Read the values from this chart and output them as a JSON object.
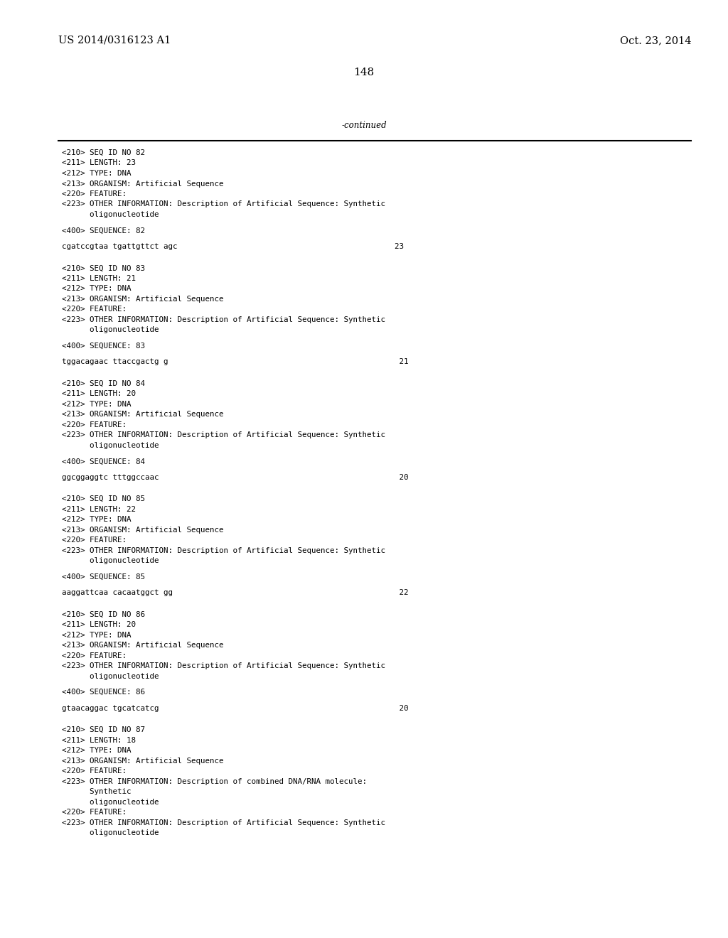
{
  "header_left": "US 2014/0316123 A1",
  "header_right": "Oct. 23, 2014",
  "page_number": "148",
  "continued_label": "-continued",
  "background_color": "#ffffff",
  "text_color": "#000000",
  "font_size_header": 10.5,
  "font_size_body": 8.5,
  "font_size_page": 11,
  "content_lines": [
    "<210> SEQ ID NO 82",
    "<211> LENGTH: 23",
    "<212> TYPE: DNA",
    "<213> ORGANISM: Artificial Sequence",
    "<220> FEATURE:",
    "<223> OTHER INFORMATION: Description of Artificial Sequence: Synthetic",
    "      oligonucleotide",
    "",
    "<400> SEQUENCE: 82",
    "",
    "cgatccgtaa tgattgttct agc                                               23",
    "",
    "",
    "<210> SEQ ID NO 83",
    "<211> LENGTH: 21",
    "<212> TYPE: DNA",
    "<213> ORGANISM: Artificial Sequence",
    "<220> FEATURE:",
    "<223> OTHER INFORMATION: Description of Artificial Sequence: Synthetic",
    "      oligonucleotide",
    "",
    "<400> SEQUENCE: 83",
    "",
    "tggacagaac ttaccgactg g                                                  21",
    "",
    "",
    "<210> SEQ ID NO 84",
    "<211> LENGTH: 20",
    "<212> TYPE: DNA",
    "<213> ORGANISM: Artificial Sequence",
    "<220> FEATURE:",
    "<223> OTHER INFORMATION: Description of Artificial Sequence: Synthetic",
    "      oligonucleotide",
    "",
    "<400> SEQUENCE: 84",
    "",
    "ggcggaggtc tttggccaac                                                    20",
    "",
    "",
    "<210> SEQ ID NO 85",
    "<211> LENGTH: 22",
    "<212> TYPE: DNA",
    "<213> ORGANISM: Artificial Sequence",
    "<220> FEATURE:",
    "<223> OTHER INFORMATION: Description of Artificial Sequence: Synthetic",
    "      oligonucleotide",
    "",
    "<400> SEQUENCE: 85",
    "",
    "aaggattcaa cacaatggct gg                                                 22",
    "",
    "",
    "<210> SEQ ID NO 86",
    "<211> LENGTH: 20",
    "<212> TYPE: DNA",
    "<213> ORGANISM: Artificial Sequence",
    "<220> FEATURE:",
    "<223> OTHER INFORMATION: Description of Artificial Sequence: Synthetic",
    "      oligonucleotide",
    "",
    "<400> SEQUENCE: 86",
    "",
    "gtaacaggac tgcatcatcg                                                    20",
    "",
    "",
    "<210> SEQ ID NO 87",
    "<211> LENGTH: 18",
    "<212> TYPE: DNA",
    "<213> ORGANISM: Artificial Sequence",
    "<220> FEATURE:",
    "<223> OTHER INFORMATION: Description of combined DNA/RNA molecule:",
    "      Synthetic",
    "      oligonucleotide",
    "<220> FEATURE:",
    "<223> OTHER INFORMATION: Description of Artificial Sequence: Synthetic",
    "      oligonucleotide"
  ]
}
